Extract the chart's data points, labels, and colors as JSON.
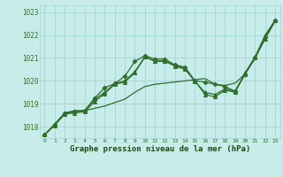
{
  "title": "Graphe pression niveau de la mer (hPa)",
  "bg_color": "#c8ece9",
  "grid_color": "#a8d8d4",
  "line_color": "#2d6e2d",
  "ylim": [
    1017.5,
    1023.3
  ],
  "xlim": [
    -0.5,
    23.5
  ],
  "yticks": [
    1018,
    1019,
    1020,
    1021,
    1022,
    1023
  ],
  "xticks": [
    0,
    1,
    2,
    3,
    4,
    5,
    6,
    7,
    8,
    9,
    10,
    11,
    12,
    13,
    14,
    15,
    16,
    17,
    18,
    19,
    20,
    21,
    22,
    23
  ],
  "series": [
    {
      "y": [
        1017.65,
        1018.1,
        1018.6,
        1018.7,
        1018.7,
        1018.8,
        1018.9,
        1019.05,
        1019.2,
        1019.5,
        1019.75,
        1019.85,
        1019.9,
        1019.95,
        1020.0,
        1020.05,
        1020.1,
        1019.85,
        1019.8,
        1019.9,
        1020.3,
        1021.0,
        1021.85,
        1022.6
      ],
      "marker": "none",
      "lw": 0.9
    },
    {
      "y": [
        1017.65,
        1018.1,
        1018.58,
        1018.65,
        1018.7,
        1019.2,
        1019.5,
        1019.88,
        1020.0,
        1020.4,
        1021.05,
        1020.87,
        1020.87,
        1020.67,
        1020.55,
        1019.97,
        1019.5,
        1019.4,
        1019.65,
        1019.55,
        1020.35,
        1021.05,
        1022.0,
        1022.65
      ],
      "marker": "^",
      "lw": 0.9
    },
    {
      "y": [
        1017.65,
        1018.05,
        1018.55,
        1018.6,
        1018.65,
        1019.1,
        1019.45,
        1019.85,
        1019.95,
        1020.35,
        1021.05,
        1020.85,
        1020.85,
        1020.65,
        1020.5,
        1020.0,
        1019.4,
        1019.3,
        1019.6,
        1019.5,
        1020.3,
        1021.0,
        1021.85,
        1022.65
      ],
      "marker": "^",
      "lw": 0.9
    },
    {
      "y": [
        1017.65,
        1018.08,
        1018.58,
        1018.65,
        1018.7,
        1019.25,
        1019.7,
        1019.88,
        1020.2,
        1020.85,
        1021.1,
        1020.95,
        1020.95,
        1020.7,
        1020.6,
        1020.0,
        1019.95,
        1019.85,
        1019.75,
        1019.55,
        1020.3,
        1021.0,
        1021.9,
        1022.65
      ],
      "marker": "D",
      "lw": 0.9
    }
  ]
}
